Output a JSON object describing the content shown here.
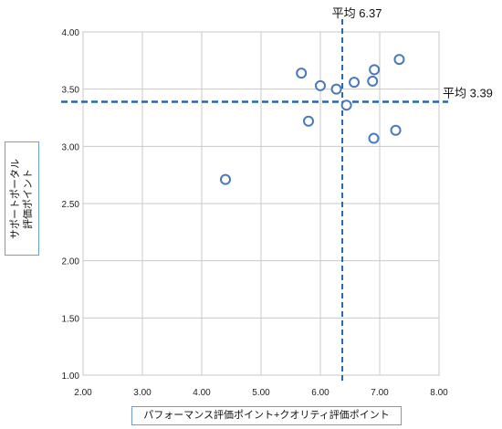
{
  "chart_data": {
    "type": "scatter",
    "xlabel": "パフォーマンス評価ポイント+クオリティ評価ポイント",
    "ylabel_lines": [
      "サポートポータル",
      "評価ポイント"
    ],
    "xlim": [
      2.0,
      8.0
    ],
    "ylim": [
      1.0,
      4.0
    ],
    "x_ticks": [
      "2.00",
      "3.00",
      "4.00",
      "5.00",
      "6.00",
      "7.00",
      "8.00"
    ],
    "y_ticks": [
      "1.00",
      "1.50",
      "2.00",
      "2.50",
      "3.00",
      "3.50",
      "4.00"
    ],
    "averages": {
      "x": {
        "value": 6.37,
        "label": "平均 6.37"
      },
      "y": {
        "value": 3.39,
        "label": "平均 3.39"
      }
    },
    "zones": [
      [
        3.0,
        5.0
      ],
      [
        5.0,
        7.0
      ],
      [
        7.0,
        8.0
      ]
    ],
    "points": [
      {
        "x": 4.4,
        "y": 2.71
      },
      {
        "x": 5.68,
        "y": 3.64
      },
      {
        "x": 5.8,
        "y": 3.22
      },
      {
        "x": 6.0,
        "y": 3.53
      },
      {
        "x": 6.27,
        "y": 3.5
      },
      {
        "x": 6.44,
        "y": 3.36
      },
      {
        "x": 6.57,
        "y": 3.56
      },
      {
        "x": 6.88,
        "y": 3.57
      },
      {
        "x": 6.91,
        "y": 3.67
      },
      {
        "x": 6.9,
        "y": 3.07
      },
      {
        "x": 7.27,
        "y": 3.14
      },
      {
        "x": 7.33,
        "y": 3.76
      }
    ],
    "colors": {
      "marker": "#4a78bd",
      "avg_line": "#2466b4",
      "zone_fill": "#f2f8f8",
      "zone_border": "#8fa3a3"
    }
  }
}
